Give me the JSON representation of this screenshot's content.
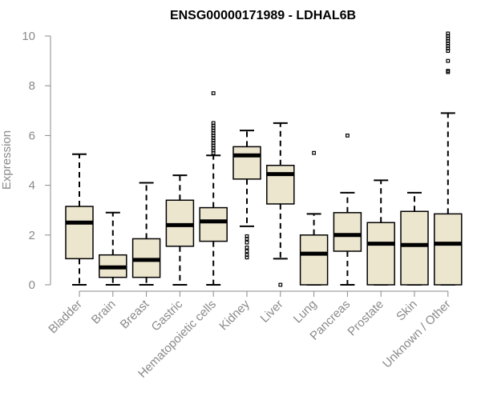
{
  "chart_data": {
    "type": "box",
    "title": "ENSG00000171989 - LDHAL6B",
    "ylabel": "Expression",
    "xlabel": "",
    "ylim": [
      0,
      10
    ],
    "yticks": [
      0,
      2,
      4,
      6,
      8,
      10
    ],
    "grid": false,
    "colors": {
      "box_fill": "#ede6cf",
      "stroke": "#000000",
      "axis": "#8a8a8a",
      "title": "#000000"
    },
    "categories": [
      "Bladder",
      "Brain",
      "Breast",
      "Gastric",
      "Hematopoietic cells",
      "Kidney",
      "Liver",
      "Lung",
      "Pancreas",
      "Prostate",
      "Skin",
      "Unknown / Other"
    ],
    "boxes": [
      {
        "category": "Bladder",
        "whisker_low": 0,
        "q1": 1.05,
        "median": 2.5,
        "q3": 3.15,
        "whisker_high": 5.25,
        "outliers": []
      },
      {
        "category": "Brain",
        "whisker_low": 0,
        "q1": 0.3,
        "median": 0.7,
        "q3": 1.2,
        "whisker_high": 2.9,
        "outliers": []
      },
      {
        "category": "Breast",
        "whisker_low": 0,
        "q1": 0.3,
        "median": 1.0,
        "q3": 1.85,
        "whisker_high": 4.1,
        "outliers": []
      },
      {
        "category": "Gastric",
        "whisker_low": 0,
        "q1": 1.55,
        "median": 2.4,
        "q3": 3.4,
        "whisker_high": 4.4,
        "outliers": []
      },
      {
        "category": "Hematopoietic cells",
        "whisker_low": 0,
        "q1": 1.75,
        "median": 2.55,
        "q3": 3.1,
        "whisker_high": 5.2,
        "outliers": [
          5.3,
          5.4,
          5.5,
          5.6,
          5.7,
          5.8,
          5.9,
          6.0,
          6.1,
          6.2,
          6.3,
          6.4,
          6.5,
          7.7
        ]
      },
      {
        "category": "Kidney",
        "whisker_low": 2.35,
        "q1": 4.25,
        "median": 5.2,
        "q3": 5.55,
        "whisker_high": 6.2,
        "outliers": [
          1.1,
          1.2,
          1.35,
          1.5,
          1.7,
          1.85,
          1.95
        ]
      },
      {
        "category": "Liver",
        "whisker_low": 1.05,
        "q1": 3.25,
        "median": 4.45,
        "q3": 4.8,
        "whisker_high": 6.5,
        "outliers": [
          0.0
        ]
      },
      {
        "category": "Lung",
        "whisker_low": 0,
        "q1": 0,
        "median": 1.25,
        "q3": 2.0,
        "whisker_high": 2.85,
        "outliers": [
          5.3
        ]
      },
      {
        "category": "Pancreas",
        "whisker_low": 0,
        "q1": 1.35,
        "median": 2.0,
        "q3": 2.9,
        "whisker_high": 3.7,
        "outliers": [
          6.0
        ]
      },
      {
        "category": "Prostate",
        "whisker_low": 0,
        "q1": 0,
        "median": 1.65,
        "q3": 2.5,
        "whisker_high": 4.2,
        "outliers": []
      },
      {
        "category": "Skin",
        "whisker_low": 0,
        "q1": 0,
        "median": 1.6,
        "q3": 2.95,
        "whisker_high": 3.7,
        "outliers": []
      },
      {
        "category": "Unknown / Other",
        "whisker_low": 0,
        "q1": 0,
        "median": 1.65,
        "q3": 2.85,
        "whisker_high": 6.9,
        "outliers": [
          8.55,
          8.6,
          9.0,
          9.4,
          9.5,
          9.6,
          9.7,
          9.8,
          9.9,
          10.0,
          10.1
        ]
      }
    ]
  }
}
